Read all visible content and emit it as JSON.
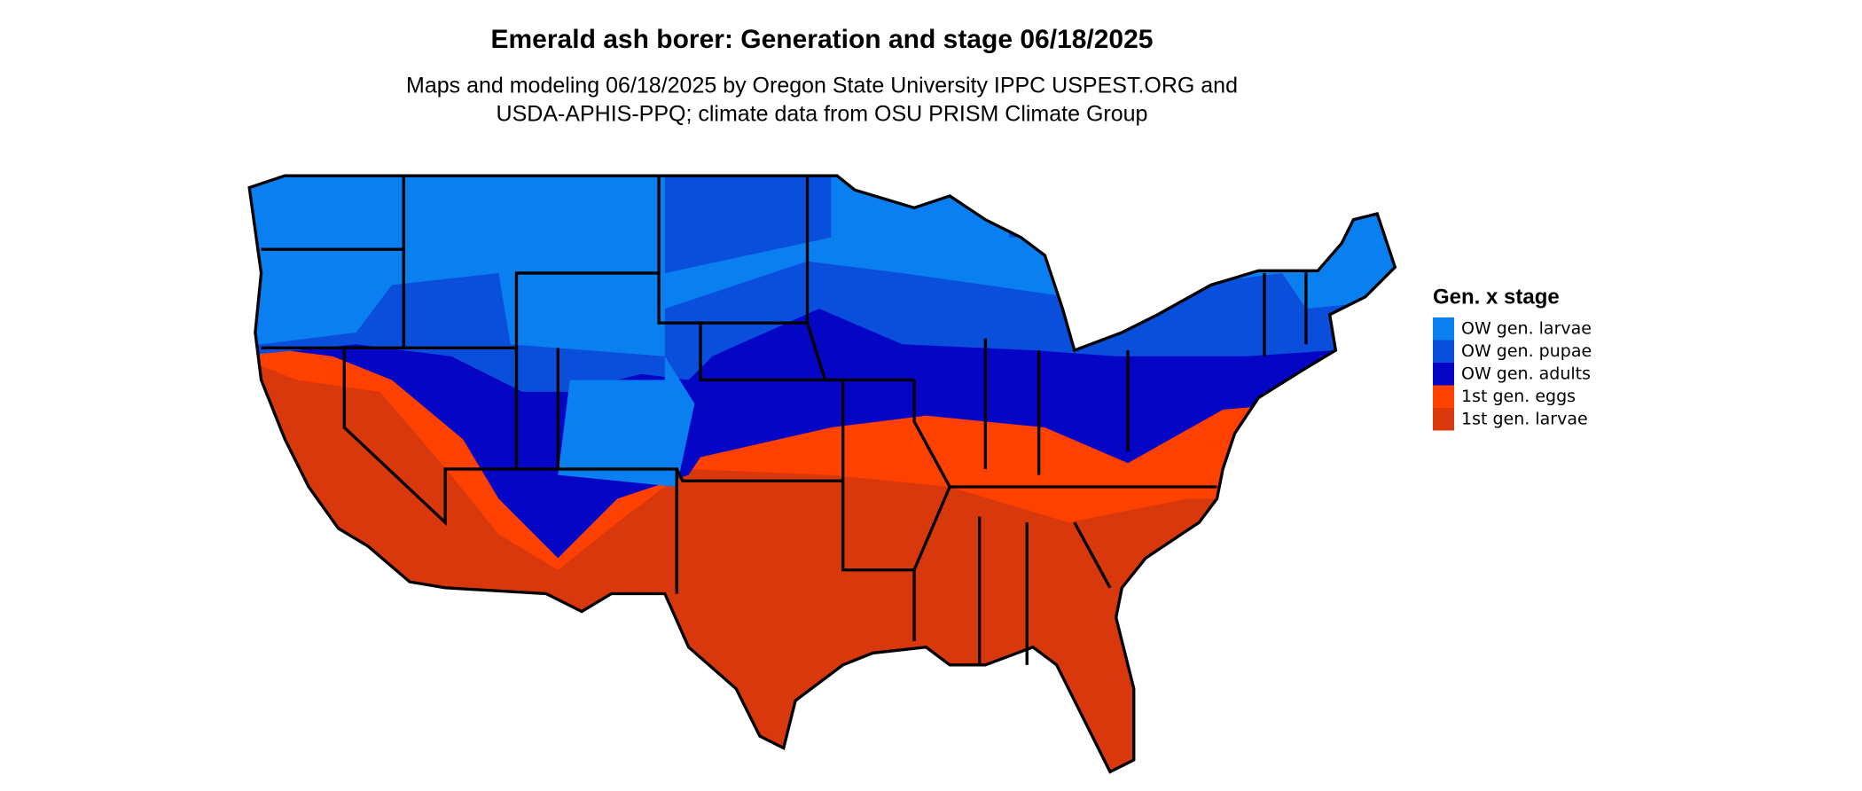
{
  "header": {
    "title": "Emerald ash borer: Generation and stage 06/18/2025",
    "subtitle": [
      "Maps and modeling 06/18/2025 by Oregon State University IPPC USPEST.ORG and",
      "USDA-APHIS-PPQ; climate data from OSU PRISM Climate Group"
    ]
  },
  "legend": {
    "title": "Gen. x stage",
    "items": [
      {
        "label": "OW gen. larvae",
        "color": "#0a80f0"
      },
      {
        "label": "OW gen. pupae",
        "color": "#0a4edc"
      },
      {
        "label": "OW gen. adults",
        "color": "#0505c6"
      },
      {
        "label": "1st gen. eggs",
        "color": "#ff4100"
      },
      {
        "label": "1st gen. larvae",
        "color": "#d9380c"
      }
    ]
  }
}
